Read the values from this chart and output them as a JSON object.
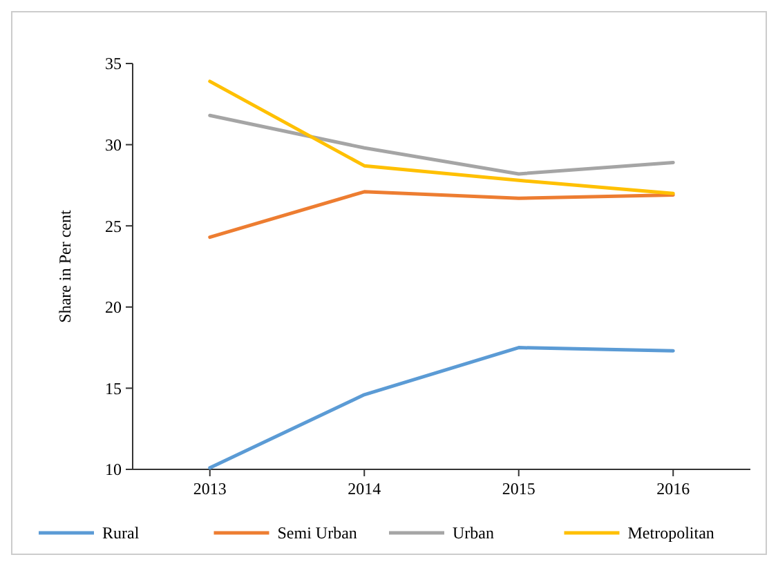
{
  "chart_data": {
    "type": "line",
    "ylabel": "Share in Per cent",
    "categories": [
      "2013",
      "2014",
      "2015",
      "2016"
    ],
    "ylim": [
      10,
      35
    ],
    "yticks": [
      10,
      15,
      20,
      25,
      30,
      35
    ],
    "grid": false,
    "legend": "bottom",
    "marker": "none",
    "line_style": "solid",
    "series": [
      {
        "name": "Rural",
        "color": "#5b9bd5",
        "values": [
          10.1,
          14.6,
          17.5,
          17.3
        ]
      },
      {
        "name": "Semi Urban",
        "color": "#ed7d31",
        "values": [
          24.3,
          27.1,
          26.7,
          26.9
        ]
      },
      {
        "name": "Urban",
        "color": "#a5a5a5",
        "values": [
          31.8,
          29.8,
          28.2,
          28.9
        ]
      },
      {
        "name": "Metropolitan",
        "color": "#ffc000",
        "values": [
          33.9,
          28.7,
          27.8,
          27.0
        ]
      }
    ]
  }
}
